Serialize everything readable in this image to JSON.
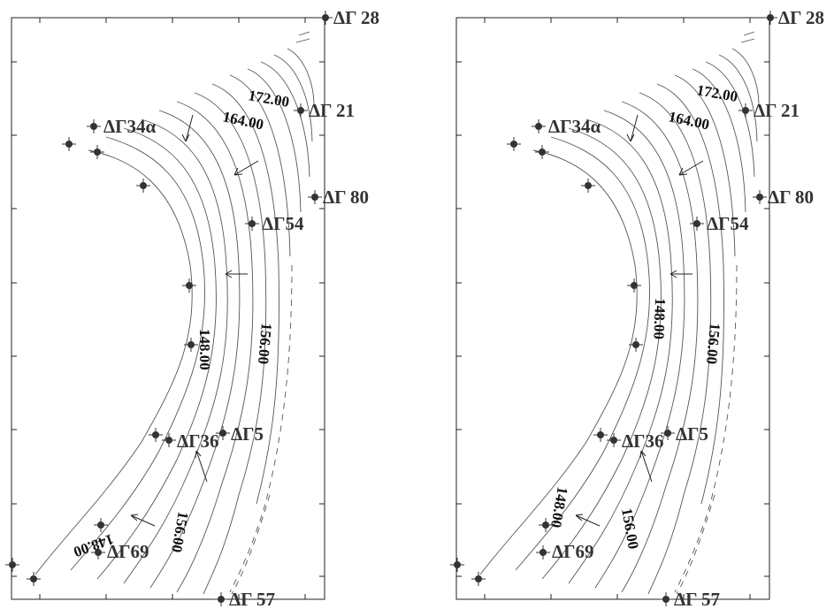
{
  "maps": [
    {
      "id": "left",
      "labels": {
        "dg28": "ΔΓ 28",
        "dg21": "ΔΓ 21",
        "dg34a": "ΔΓ34α",
        "dg80": "ΔΓ 80",
        "dg54": "ΔΓ54",
        "dg5": "ΔΓ5",
        "dg36": "ΔΓ36",
        "dg69": "ΔΓ69",
        "dg57": "ΔΓ 57"
      },
      "contour_labels": {
        "c172": "172.00",
        "c164": "164.00",
        "c148": "148.00",
        "c156": "156.00",
        "c156b": "156.00",
        "c148b": "148.00"
      }
    },
    {
      "id": "right",
      "labels": {
        "dg28": "ΔΓ 28",
        "dg21": "ΔΓ 21",
        "dg34a": "ΔΓ34α",
        "dg80": "ΔΓ 80",
        "dg54": "ΔΓ54",
        "dg5": "ΔΓ5",
        "dg36": "ΔΓ36",
        "dg69": "ΔΓ69",
        "dg57": "ΔΓ 57"
      },
      "contour_labels": {
        "c172": "172.00",
        "c164": "164.00",
        "c148": "148.00",
        "c156": "156.00",
        "c156b": "156.00",
        "c148b": "148.00"
      }
    }
  ]
}
